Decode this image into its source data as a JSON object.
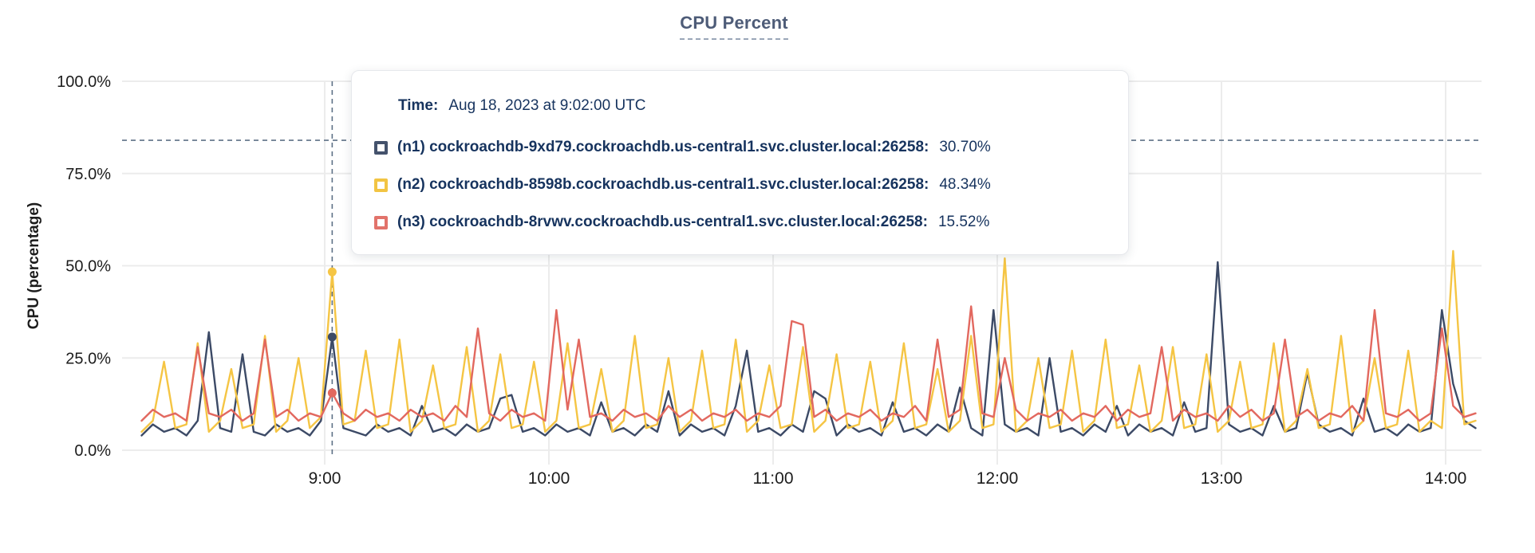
{
  "title": {
    "text": "CPU Percent"
  },
  "y_axis_title": "CPU (percentage)",
  "tooltip": {
    "time_label": "Time:",
    "time_value": "Aug 18, 2023 at 9:02:00 UTC",
    "series": [
      {
        "label": "(n1) cockroachdb-9xd79.cockroachdb.us-central1.svc.cluster.local:26258:",
        "value": "30.70%",
        "color": "#44526c"
      },
      {
        "label": "(n2) cockroachdb-8598b.cockroachdb.us-central1.svc.cluster.local:26258:",
        "value": "48.34%",
        "color": "#f2c443"
      },
      {
        "label": "(n3) cockroachdb-8rvwv.cockroachdb.us-central1.svc.cluster.local:26258:",
        "value": "15.52%",
        "color": "#e2736b"
      }
    ]
  },
  "colors": {
    "grid": "#ececec",
    "axis_text": "#1c1c1c",
    "crosshair": "#5e7186",
    "title": "#4e5c78",
    "tooltip_text": "#16335e"
  },
  "chart_data": {
    "type": "line",
    "title": "CPU Percent",
    "xlabel": "",
    "ylabel": "CPU (percentage)",
    "ylim": [
      0,
      100
    ],
    "grid": true,
    "legend_position": "tooltip-overlay",
    "x_unit": "time (UTC), Aug 18, 2023",
    "x_start_minutes": 491,
    "x_step_minutes": 3,
    "x_ticks": [
      {
        "minutes": 540,
        "label": "9:00"
      },
      {
        "minutes": 600,
        "label": "10:00"
      },
      {
        "minutes": 660,
        "label": "11:00"
      },
      {
        "minutes": 720,
        "label": "12:00"
      },
      {
        "minutes": 780,
        "label": "13:00"
      },
      {
        "minutes": 840,
        "label": "14:00"
      }
    ],
    "y_ticks": [
      {
        "value": 0,
        "label": "0.0%"
      },
      {
        "value": 25,
        "label": "25.0%"
      },
      {
        "value": 50,
        "label": "50.0%"
      },
      {
        "value": 75,
        "label": "75.0%"
      },
      {
        "value": 100,
        "label": "100.0%"
      }
    ],
    "hover": {
      "time_minutes": 542,
      "time_label": "Aug 18, 2023 at 9:02:00 UTC",
      "crosshair_y_percent": 84,
      "points": [
        {
          "series": "n1",
          "value": 30.7
        },
        {
          "series": "n2",
          "value": 48.34
        },
        {
          "series": "n3",
          "value": 15.52
        }
      ]
    },
    "series": [
      {
        "name": "(n1) cockroachdb-9xd79.cockroachdb.us-central1.svc.cluster.local:26258",
        "short": "n1",
        "color": "#3c4a66",
        "values": [
          4,
          7,
          5,
          6,
          4,
          8,
          32,
          6,
          5,
          26,
          5,
          4,
          7,
          5,
          6,
          4,
          8,
          30.7,
          6,
          5,
          4,
          7,
          5,
          6,
          4,
          12,
          5,
          6,
          4,
          7,
          5,
          6,
          14,
          15,
          5,
          6,
          4,
          7,
          5,
          6,
          4,
          13,
          5,
          6,
          4,
          7,
          5,
          16,
          4,
          7,
          5,
          6,
          4,
          12,
          27,
          5,
          6,
          4,
          7,
          5,
          16,
          14,
          4,
          7,
          5,
          6,
          4,
          13,
          5,
          6,
          4,
          7,
          5,
          17,
          6,
          4,
          38,
          7,
          5,
          6,
          4,
          25,
          5,
          6,
          4,
          7,
          5,
          12,
          4,
          7,
          5,
          6,
          4,
          13,
          5,
          6,
          51,
          7,
          5,
          6,
          4,
          12,
          5,
          6,
          21,
          7,
          5,
          6,
          4,
          14,
          5,
          6,
          4,
          7,
          5,
          6,
          38,
          18,
          8,
          6
        ]
      },
      {
        "name": "(n2) cockroachdb-8598b.cockroachdb.us-central1.svc.cluster.local:26258",
        "short": "n2",
        "color": "#f5c544",
        "values": [
          5,
          8,
          24,
          6,
          7,
          29,
          5,
          8,
          22,
          6,
          7,
          31,
          5,
          8,
          25,
          6,
          9,
          48.34,
          7,
          8,
          27,
          6,
          7,
          30,
          5,
          8,
          23,
          6,
          7,
          28,
          5,
          8,
          26,
          6,
          7,
          24,
          5,
          8,
          29,
          6,
          7,
          22,
          5,
          8,
          31,
          6,
          7,
          25,
          5,
          8,
          27,
          6,
          7,
          30,
          5,
          8,
          23,
          6,
          7,
          28,
          5,
          8,
          26,
          6,
          7,
          24,
          5,
          8,
          29,
          6,
          7,
          22,
          5,
          8,
          31,
          6,
          7,
          52,
          5,
          8,
          25,
          6,
          7,
          27,
          5,
          8,
          30,
          6,
          7,
          23,
          5,
          8,
          28,
          6,
          7,
          26,
          5,
          8,
          24,
          6,
          7,
          29,
          5,
          8,
          22,
          6,
          7,
          31,
          5,
          8,
          25,
          6,
          7,
          27,
          5,
          8,
          6,
          54,
          7,
          8
        ]
      },
      {
        "name": "(n3) cockroachdb-8rvwv.cockroachdb.us-central1.svc.cluster.local:26258",
        "short": "n3",
        "color": "#e2685f",
        "values": [
          8,
          11,
          9,
          10,
          8,
          28,
          10,
          9,
          11,
          8,
          10,
          30,
          9,
          11,
          8,
          10,
          9,
          15.52,
          10,
          8,
          11,
          9,
          10,
          8,
          11,
          9,
          10,
          8,
          12,
          9,
          33,
          10,
          8,
          11,
          9,
          10,
          8,
          38,
          11,
          30,
          9,
          10,
          8,
          11,
          9,
          10,
          8,
          12,
          9,
          11,
          8,
          10,
          9,
          11,
          8,
          10,
          9,
          12,
          35,
          34,
          9,
          11,
          8,
          10,
          9,
          11,
          8,
          10,
          9,
          12,
          8,
          30,
          9,
          11,
          39,
          10,
          9,
          25,
          11,
          8,
          10,
          9,
          11,
          8,
          10,
          9,
          12,
          8,
          11,
          9,
          10,
          28,
          8,
          11,
          9,
          10,
          8,
          12,
          9,
          11,
          8,
          10,
          30,
          9,
          11,
          8,
          10,
          9,
          12,
          8,
          38,
          10,
          9,
          11,
          8,
          10,
          33,
          12,
          9,
          10
        ]
      }
    ]
  }
}
